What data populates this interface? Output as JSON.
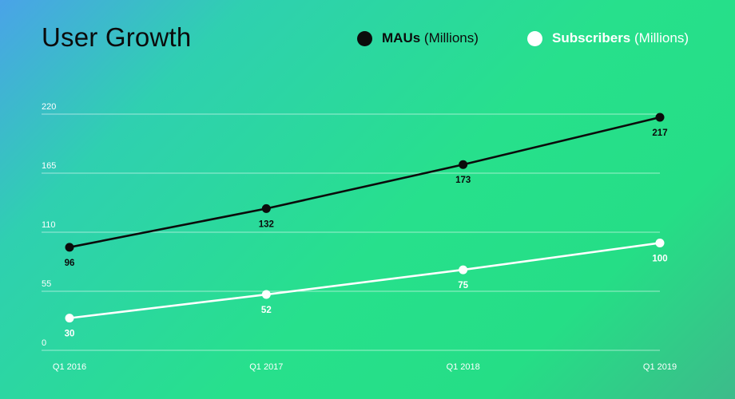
{
  "chart_data": {
    "type": "line",
    "title": "User Growth",
    "categories": [
      "Q1 2016",
      "Q1 2017",
      "Q1 2018",
      "Q1 2019"
    ],
    "series": [
      {
        "name": "MAUs",
        "unit": "(Millions)",
        "values": [
          96,
          132,
          173,
          217
        ],
        "color": "#0b0b0b"
      },
      {
        "name": "Subscribers",
        "unit": "(Millions)",
        "values": [
          30,
          52,
          75,
          100
        ],
        "color": "#ffffff"
      }
    ],
    "y_ticks": [
      "0",
      "55",
      "110",
      "165",
      "220"
    ],
    "ylim": [
      0,
      220
    ],
    "grid": true,
    "legend": "top-right"
  }
}
